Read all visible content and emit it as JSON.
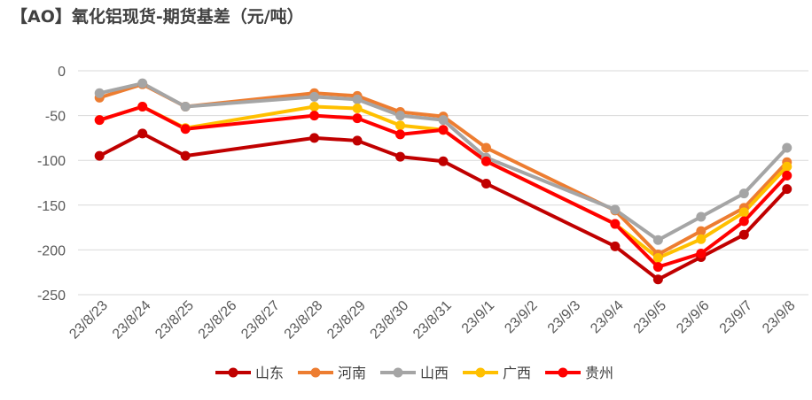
{
  "chart_data": {
    "type": "line",
    "title": "【AO】氧化铝现货-期货基差（元/吨）",
    "xlabel": "",
    "ylabel": "",
    "ylim": [
      -250,
      0
    ],
    "yticks": [
      0,
      -50,
      -100,
      -150,
      -200,
      -250
    ],
    "grid": "horizontal",
    "legend_position": "bottom",
    "categories": [
      "23/8/23",
      "23/8/24",
      "23/8/25",
      "23/8/26",
      "23/8/27",
      "23/8/28",
      "23/8/29",
      "23/8/30",
      "23/8/31",
      "23/9/1",
      "23/9/2",
      "23/9/3",
      "23/9/4",
      "23/9/5",
      "23/9/6",
      "23/9/7",
      "23/9/8"
    ],
    "series": [
      {
        "name": "山东",
        "color": "#C00000",
        "values": [
          -95,
          -70,
          -95,
          null,
          null,
          -75,
          -78,
          -96,
          -101,
          -126,
          null,
          null,
          -196,
          -233,
          -208,
          -183,
          -132
        ]
      },
      {
        "name": "河南",
        "color": "#ED7D31",
        "values": [
          -30,
          -15,
          -40,
          null,
          null,
          -25,
          -28,
          -46,
          -51,
          -86,
          null,
          null,
          -156,
          -205,
          -179,
          -153,
          -102
        ]
      },
      {
        "name": "山西",
        "color": "#A5A5A5",
        "values": [
          -25,
          -14,
          -40,
          null,
          null,
          -29,
          -32,
          -50,
          -55,
          -97,
          null,
          null,
          -155,
          -189,
          -163,
          -137,
          -86
        ]
      },
      {
        "name": "广西",
        "color": "#FFC000",
        "values": [
          -55,
          -40,
          -64,
          null,
          null,
          -40,
          -42,
          -61,
          -66,
          -101,
          null,
          null,
          -171,
          -209,
          -188,
          -158,
          -107
        ]
      },
      {
        "name": "贵州",
        "color": "#FF0000",
        "values": [
          -55,
          -40,
          -65,
          null,
          null,
          -50,
          -53,
          -71,
          -66,
          -101,
          null,
          null,
          -171,
          -219,
          -204,
          -168,
          -117
        ]
      }
    ]
  }
}
